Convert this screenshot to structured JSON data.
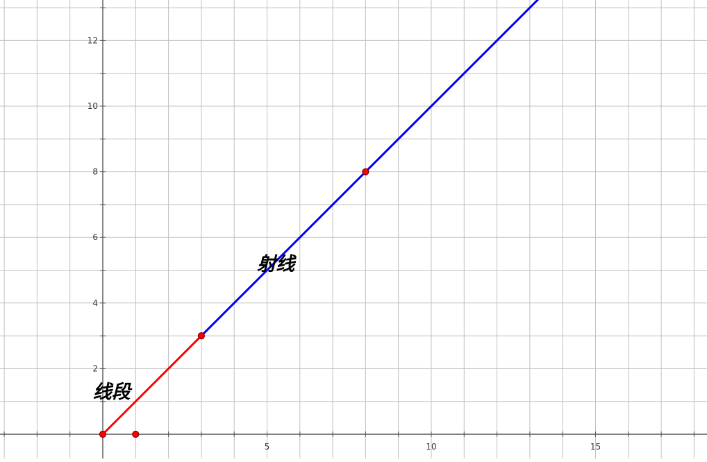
{
  "chart_data": {
    "type": "line",
    "title": "",
    "xlabel": "",
    "ylabel": "",
    "xlim": [
      -3.1,
      18.4
    ],
    "ylim": [
      -0.75,
      13.3
    ],
    "x_ticks": [
      5,
      10,
      15
    ],
    "y_ticks": [
      2,
      4,
      6,
      8,
      10,
      12
    ],
    "grid": true,
    "grid_step": 1,
    "segments": [
      {
        "kind": "segment",
        "color": "#ff0000",
        "from": [
          0,
          0
        ],
        "to": [
          3,
          3
        ]
      },
      {
        "kind": "ray",
        "color": "#0000ff",
        "from": [
          3,
          3
        ],
        "through": [
          8,
          8
        ]
      }
    ],
    "points": [
      {
        "x": 0,
        "y": 0
      },
      {
        "x": 1,
        "y": 0
      },
      {
        "x": 3,
        "y": 3
      },
      {
        "x": 8,
        "y": 8
      }
    ],
    "annotations": [
      {
        "text": "线段",
        "x": -0.3,
        "y": 1.1
      },
      {
        "text": "射线",
        "x": 4.7,
        "y": 5.0
      }
    ],
    "colors": {
      "grid": "#c0c0c0",
      "axis": "#555555",
      "point_fill": "#ff0000",
      "point_stroke": "#800000"
    }
  }
}
